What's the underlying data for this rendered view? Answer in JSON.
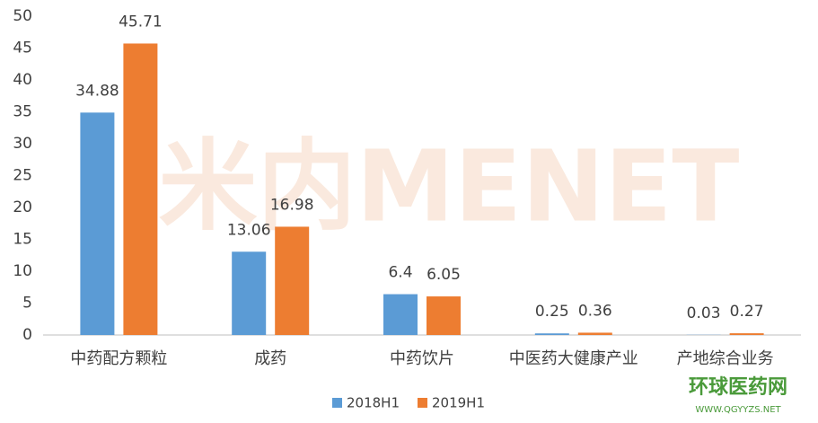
{
  "chart_data": {
    "type": "bar",
    "categories": [
      "中药配方颗粒",
      "成药",
      "中药饮片",
      "中医药大健康产业",
      "产地综合业务"
    ],
    "series": [
      {
        "name": "2018H1",
        "color": "#5b9bd5",
        "values": [
          34.88,
          13.06,
          6.4,
          0.25,
          0.03
        ]
      },
      {
        "name": "2019H1",
        "color": "#ed7d31",
        "values": [
          45.71,
          16.98,
          6.05,
          0.36,
          0.27
        ]
      }
    ],
    "ylim": [
      0,
      50
    ],
    "yticks": [
      0,
      5,
      10,
      15,
      20,
      25,
      30,
      35,
      40,
      45,
      50
    ],
    "grid": false,
    "legend": "bottom"
  },
  "watermark": "米内MENET",
  "logo": {
    "name": "环球医药网",
    "url": "WWW.QGYYZS.NET"
  }
}
